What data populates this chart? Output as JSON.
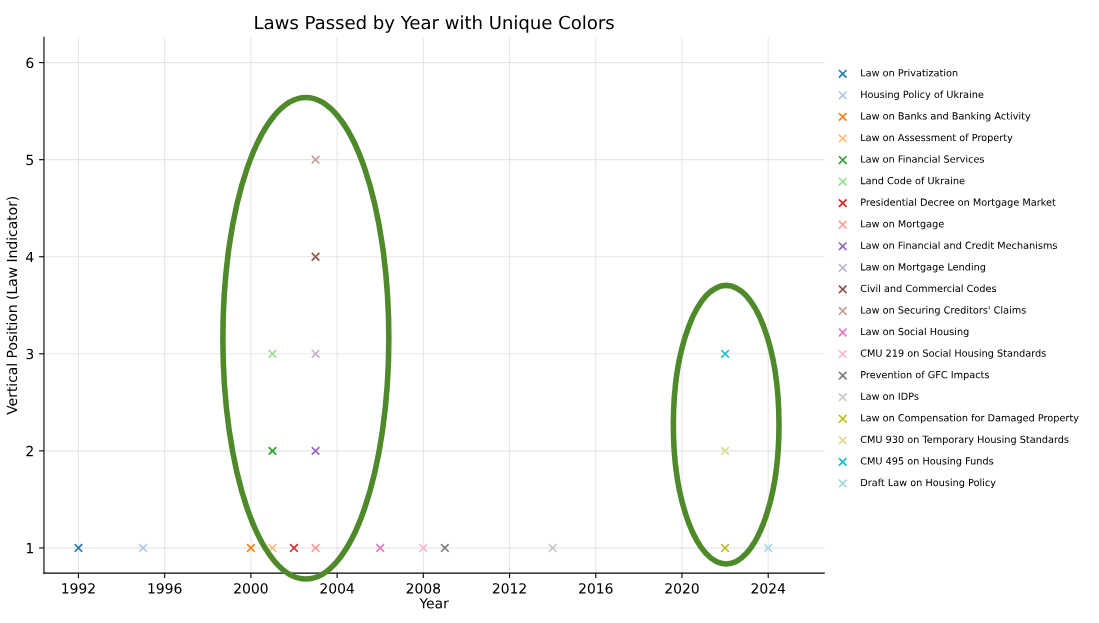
{
  "chart_data": {
    "type": "scatter",
    "title": "Laws Passed by Year with Unique Colors",
    "xlabel": "Year",
    "ylabel": "Vertical Position (Law Indicator)",
    "xlim": [
      1990.4,
      2026.6
    ],
    "xticks": [
      1992,
      1996,
      2000,
      2004,
      2008,
      2012,
      2016,
      2020,
      2024
    ],
    "ylim": [
      0.74,
      6.26
    ],
    "yticks": [
      1,
      2,
      3,
      4,
      5,
      6
    ],
    "grid": true,
    "legend": "right",
    "marker": "cross",
    "series": [
      {
        "name": "Law on Privatization",
        "color": "#1f77b4",
        "x": [
          1992
        ],
        "values": [
          1
        ]
      },
      {
        "name": "Housing Policy of Ukraine",
        "color": "#aec7e8",
        "x": [
          1995
        ],
        "values": [
          1
        ]
      },
      {
        "name": "Law on Banks and Banking Activity",
        "color": "#ff7f0e",
        "x": [
          2000
        ],
        "values": [
          1
        ]
      },
      {
        "name": "Law on Assessment of Property",
        "color": "#ffbb78",
        "x": [
          2001
        ],
        "values": [
          1
        ]
      },
      {
        "name": "Law on Financial Services",
        "color": "#2ca02c",
        "x": [
          2001
        ],
        "values": [
          2
        ]
      },
      {
        "name": "Land Code of Ukraine",
        "color": "#98df8a",
        "x": [
          2001
        ],
        "values": [
          3
        ]
      },
      {
        "name": "Presidential Decree on Mortgage Market",
        "color": "#d62728",
        "x": [
          2002
        ],
        "values": [
          1
        ]
      },
      {
        "name": "Law on Mortgage",
        "color": "#ff9896",
        "x": [
          2003
        ],
        "values": [
          1
        ]
      },
      {
        "name": "Law on Financial and Credit Mechanisms",
        "color": "#9467bd",
        "x": [
          2003
        ],
        "values": [
          2
        ]
      },
      {
        "name": "Law on Mortgage Lending",
        "color": "#c5b0d5",
        "x": [
          2003
        ],
        "values": [
          3
        ]
      },
      {
        "name": "Civil and Commercial Codes",
        "color": "#8c564b",
        "x": [
          2003
        ],
        "values": [
          4
        ]
      },
      {
        "name": "Law on Securing Creditors' Claims",
        "color": "#c49c94",
        "x": [
          2003
        ],
        "values": [
          5
        ]
      },
      {
        "name": "Law on Social Housing",
        "color": "#e377c2",
        "x": [
          2006
        ],
        "values": [
          1
        ]
      },
      {
        "name": "CMU 219 on Social Housing Standards",
        "color": "#f7b6d2",
        "x": [
          2008
        ],
        "values": [
          1
        ]
      },
      {
        "name": "Prevention of GFC Impacts",
        "color": "#7f7f7f",
        "x": [
          2009
        ],
        "values": [
          1
        ]
      },
      {
        "name": "Law on IDPs",
        "color": "#c7c7c7",
        "x": [
          2014
        ],
        "values": [
          1
        ]
      },
      {
        "name": "Law on Compensation for Damaged Property",
        "color": "#bcbd22",
        "x": [
          2022
        ],
        "values": [
          1
        ]
      },
      {
        "name": "CMU 930 on Temporary Housing Standards",
        "color": "#dbdb8d",
        "x": [
          2022
        ],
        "values": [
          2
        ]
      },
      {
        "name": "CMU 495 on Housing Funds",
        "color": "#17becf",
        "x": [
          2022
        ],
        "values": [
          3
        ]
      },
      {
        "name": "Draft Law on Housing Policy",
        "color": "#9edae5",
        "x": [
          2024
        ],
        "values": [
          1
        ]
      }
    ]
  }
}
